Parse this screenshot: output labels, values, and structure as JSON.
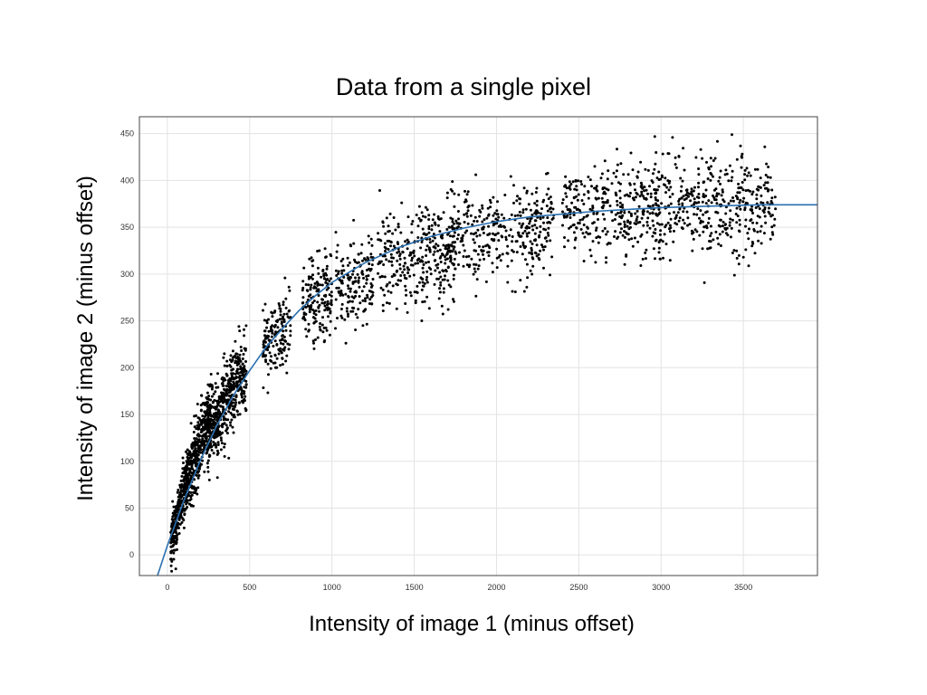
{
  "chart_data": {
    "type": "scatter",
    "title": "Data from a single pixel",
    "xlabel": "Intensity of image 1 (minus offset)",
    "ylabel": "Intensity of image 2 (minus offset)",
    "xlim": [
      -170,
      3950
    ],
    "ylim": [
      -22,
      468
    ],
    "xticks": [
      0,
      500,
      1000,
      1500,
      2000,
      2500,
      3000,
      3500
    ],
    "yticks": [
      0,
      50,
      100,
      150,
      200,
      250,
      300,
      350,
      400,
      450
    ],
    "grid": true,
    "legend": "none",
    "series": [
      {
        "kind": "points",
        "color": "#000000",
        "clusters": [
          {
            "x_range": [
              20,
              120
            ],
            "center_x": 60,
            "center_y": 40,
            "slope": 0.75,
            "spread_y": 15,
            "count": 260
          },
          {
            "x_range": [
              100,
              260
            ],
            "center_x": 180,
            "center_y": 110,
            "slope": 0.5,
            "spread_y": 18,
            "count": 420
          },
          {
            "x_range": [
              240,
              480
            ],
            "center_x": 360,
            "center_y": 165,
            "slope": 0.3,
            "spread_y": 20,
            "count": 520
          },
          {
            "x_range": [
              580,
              750
            ],
            "center_x": 660,
            "center_y": 232,
            "slope": 0.1,
            "spread_y": 20,
            "count": 160
          },
          {
            "x_range": [
              820,
              1000
            ],
            "center_x": 900,
            "center_y": 275,
            "slope": 0.05,
            "spread_y": 22,
            "count": 170
          },
          {
            "x_range": [
              1020,
              1250
            ],
            "center_x": 1140,
            "center_y": 295,
            "slope": 0.04,
            "spread_y": 24,
            "count": 170
          },
          {
            "x_range": [
              1280,
              1750
            ],
            "center_x": 1500,
            "center_y": 320,
            "slope": 0.02,
            "spread_y": 24,
            "count": 340
          },
          {
            "x_range": [
              1700,
              2350
            ],
            "center_x": 2000,
            "center_y": 345,
            "slope": 0.01,
            "spread_y": 24,
            "count": 360
          },
          {
            "x_range": [
              2400,
              3000
            ],
            "center_x": 2700,
            "center_y": 368,
            "slope": 0.0,
            "spread_y": 24,
            "count": 340
          },
          {
            "x_range": [
              2950,
              3700
            ],
            "center_x": 3250,
            "center_y": 375,
            "slope": 0.0,
            "spread_y": 26,
            "count": 420
          }
        ]
      },
      {
        "kind": "fit-curve",
        "color": "#2a6fb0",
        "x": [
          -60,
          0,
          100,
          200,
          300,
          400,
          500,
          600,
          700,
          800,
          900,
          1000,
          1200,
          1400,
          1600,
          1800,
          2000,
          2200,
          2400,
          2600,
          2800,
          3000,
          3200,
          3400,
          3600,
          3800,
          3950
        ],
        "y": [
          -22,
          10,
          58,
          101,
          138,
          170,
          197,
          222,
          242,
          261,
          277,
          291,
          312,
          328,
          340,
          349,
          356,
          361,
          364,
          367,
          369,
          371,
          372,
          373,
          374,
          374,
          374
        ]
      }
    ]
  }
}
